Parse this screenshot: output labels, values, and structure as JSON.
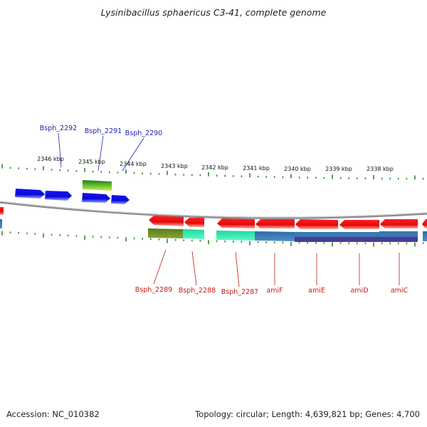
{
  "title": "Lysinibacillus sphaericus C3-41, complete genome",
  "footer": {
    "accession": "Accession: NC_010382",
    "summary": "Topology: circular; Length: 4,639,821 bp; Genes: 4,700"
  },
  "colors": {
    "backbone": "#888888",
    "tick": "#2e8b2e",
    "forward_gene": "#1a1aee",
    "reverse_gene": "#ee1111",
    "forward_label": "#1c1caa",
    "reverse_label": "#c41a1a",
    "cds_olive": "#6b8a23",
    "cds_light_green": "#a6d82e",
    "cds_aqua": "#22e8a8",
    "cds_steel_blue": "#3a78b0",
    "cds_purple": "#4a3a98"
  },
  "scale": {
    "unit": "kbp",
    "labels": [
      "2346 kbp",
      "2345 kbp",
      "2344 kbp",
      "2343 kbp",
      "2342 kbp",
      "2341 kbp",
      "2340 kbp",
      "2339 kbp",
      "2338 kbp"
    ]
  },
  "forward_labels": [
    "Bsph_2292",
    "Bsph_2291",
    "Bsph_2290"
  ],
  "reverse_labels": [
    "Bsph_2289",
    "Bsph_2288",
    "Bsph_2287",
    "amiF",
    "amiE",
    "amiD",
    "amiC"
  ]
}
